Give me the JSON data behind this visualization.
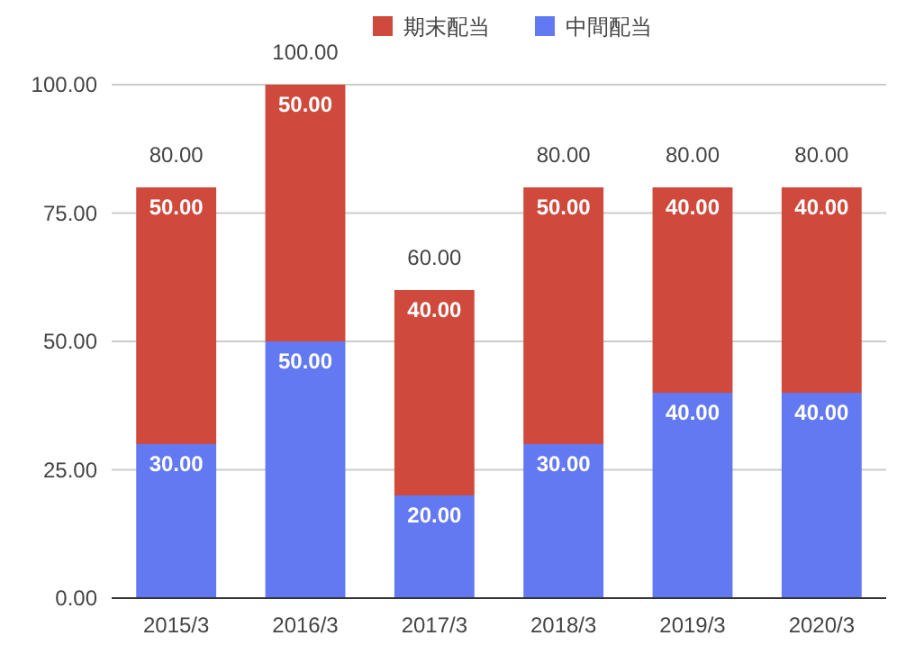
{
  "chart_data": {
    "type": "bar",
    "stacked": true,
    "categories": [
      "2015/3",
      "2016/3",
      "2017/3",
      "2018/3",
      "2019/3",
      "2020/3"
    ],
    "series": [
      {
        "name": "中間配当",
        "color": "#6379f2",
        "values": [
          30,
          50,
          20,
          30,
          40,
          40
        ],
        "value_labels": [
          "30.00",
          "50.00",
          "20.00",
          "30.00",
          "40.00",
          "40.00"
        ]
      },
      {
        "name": "期末配当",
        "color": "#cf4a3c",
        "values": [
          50,
          50,
          40,
          50,
          40,
          40
        ],
        "value_labels": [
          "50.00",
          "50.00",
          "40.00",
          "50.00",
          "40.00",
          "40.00"
        ]
      }
    ],
    "totals": [
      "80.00",
      "100.00",
      "60.00",
      "80.00",
      "80.00",
      "80.00"
    ],
    "ylim": [
      0,
      100
    ],
    "yticks": [
      {
        "value": 0,
        "label": "0.00"
      },
      {
        "value": 25,
        "label": "25.00"
      },
      {
        "value": 50,
        "label": "50.00"
      },
      {
        "value": 75,
        "label": "75.00"
      },
      {
        "value": 100,
        "label": "100.00"
      }
    ],
    "grid": "y",
    "legend": "top"
  }
}
